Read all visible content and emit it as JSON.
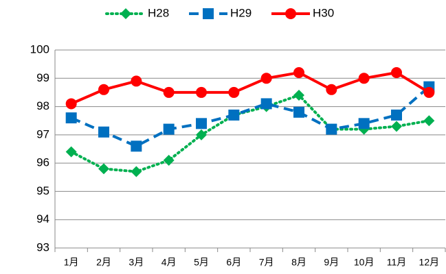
{
  "chart_data": {
    "type": "line",
    "categories": [
      "1月",
      "2月",
      "3月",
      "4月",
      "5月",
      "6月",
      "7月",
      "8月",
      "9月",
      "10月",
      "11月",
      "12月"
    ],
    "series": [
      {
        "name": "H28",
        "color": "#00b050",
        "dash": "dotted",
        "marker": "diamond",
        "values": [
          96.4,
          95.8,
          95.7,
          96.1,
          97.0,
          97.7,
          98.0,
          98.4,
          97.2,
          97.2,
          97.3,
          97.5
        ]
      },
      {
        "name": "H29",
        "color": "#0070c0",
        "dash": "dashed",
        "marker": "square",
        "values": [
          97.6,
          97.1,
          96.6,
          97.2,
          97.4,
          97.7,
          98.1,
          97.8,
          97.2,
          97.4,
          97.7,
          98.7
        ]
      },
      {
        "name": "H30",
        "color": "#ff0000",
        "dash": "solid",
        "marker": "circle",
        "values": [
          98.1,
          98.6,
          98.9,
          98.5,
          98.5,
          98.5,
          99.0,
          99.2,
          98.6,
          99.0,
          99.2,
          98.5
        ]
      }
    ],
    "ylim": [
      93,
      100
    ],
    "yticks": [
      93,
      94,
      95,
      96,
      97,
      98,
      99,
      100
    ],
    "grid": true,
    "legend": "top"
  }
}
